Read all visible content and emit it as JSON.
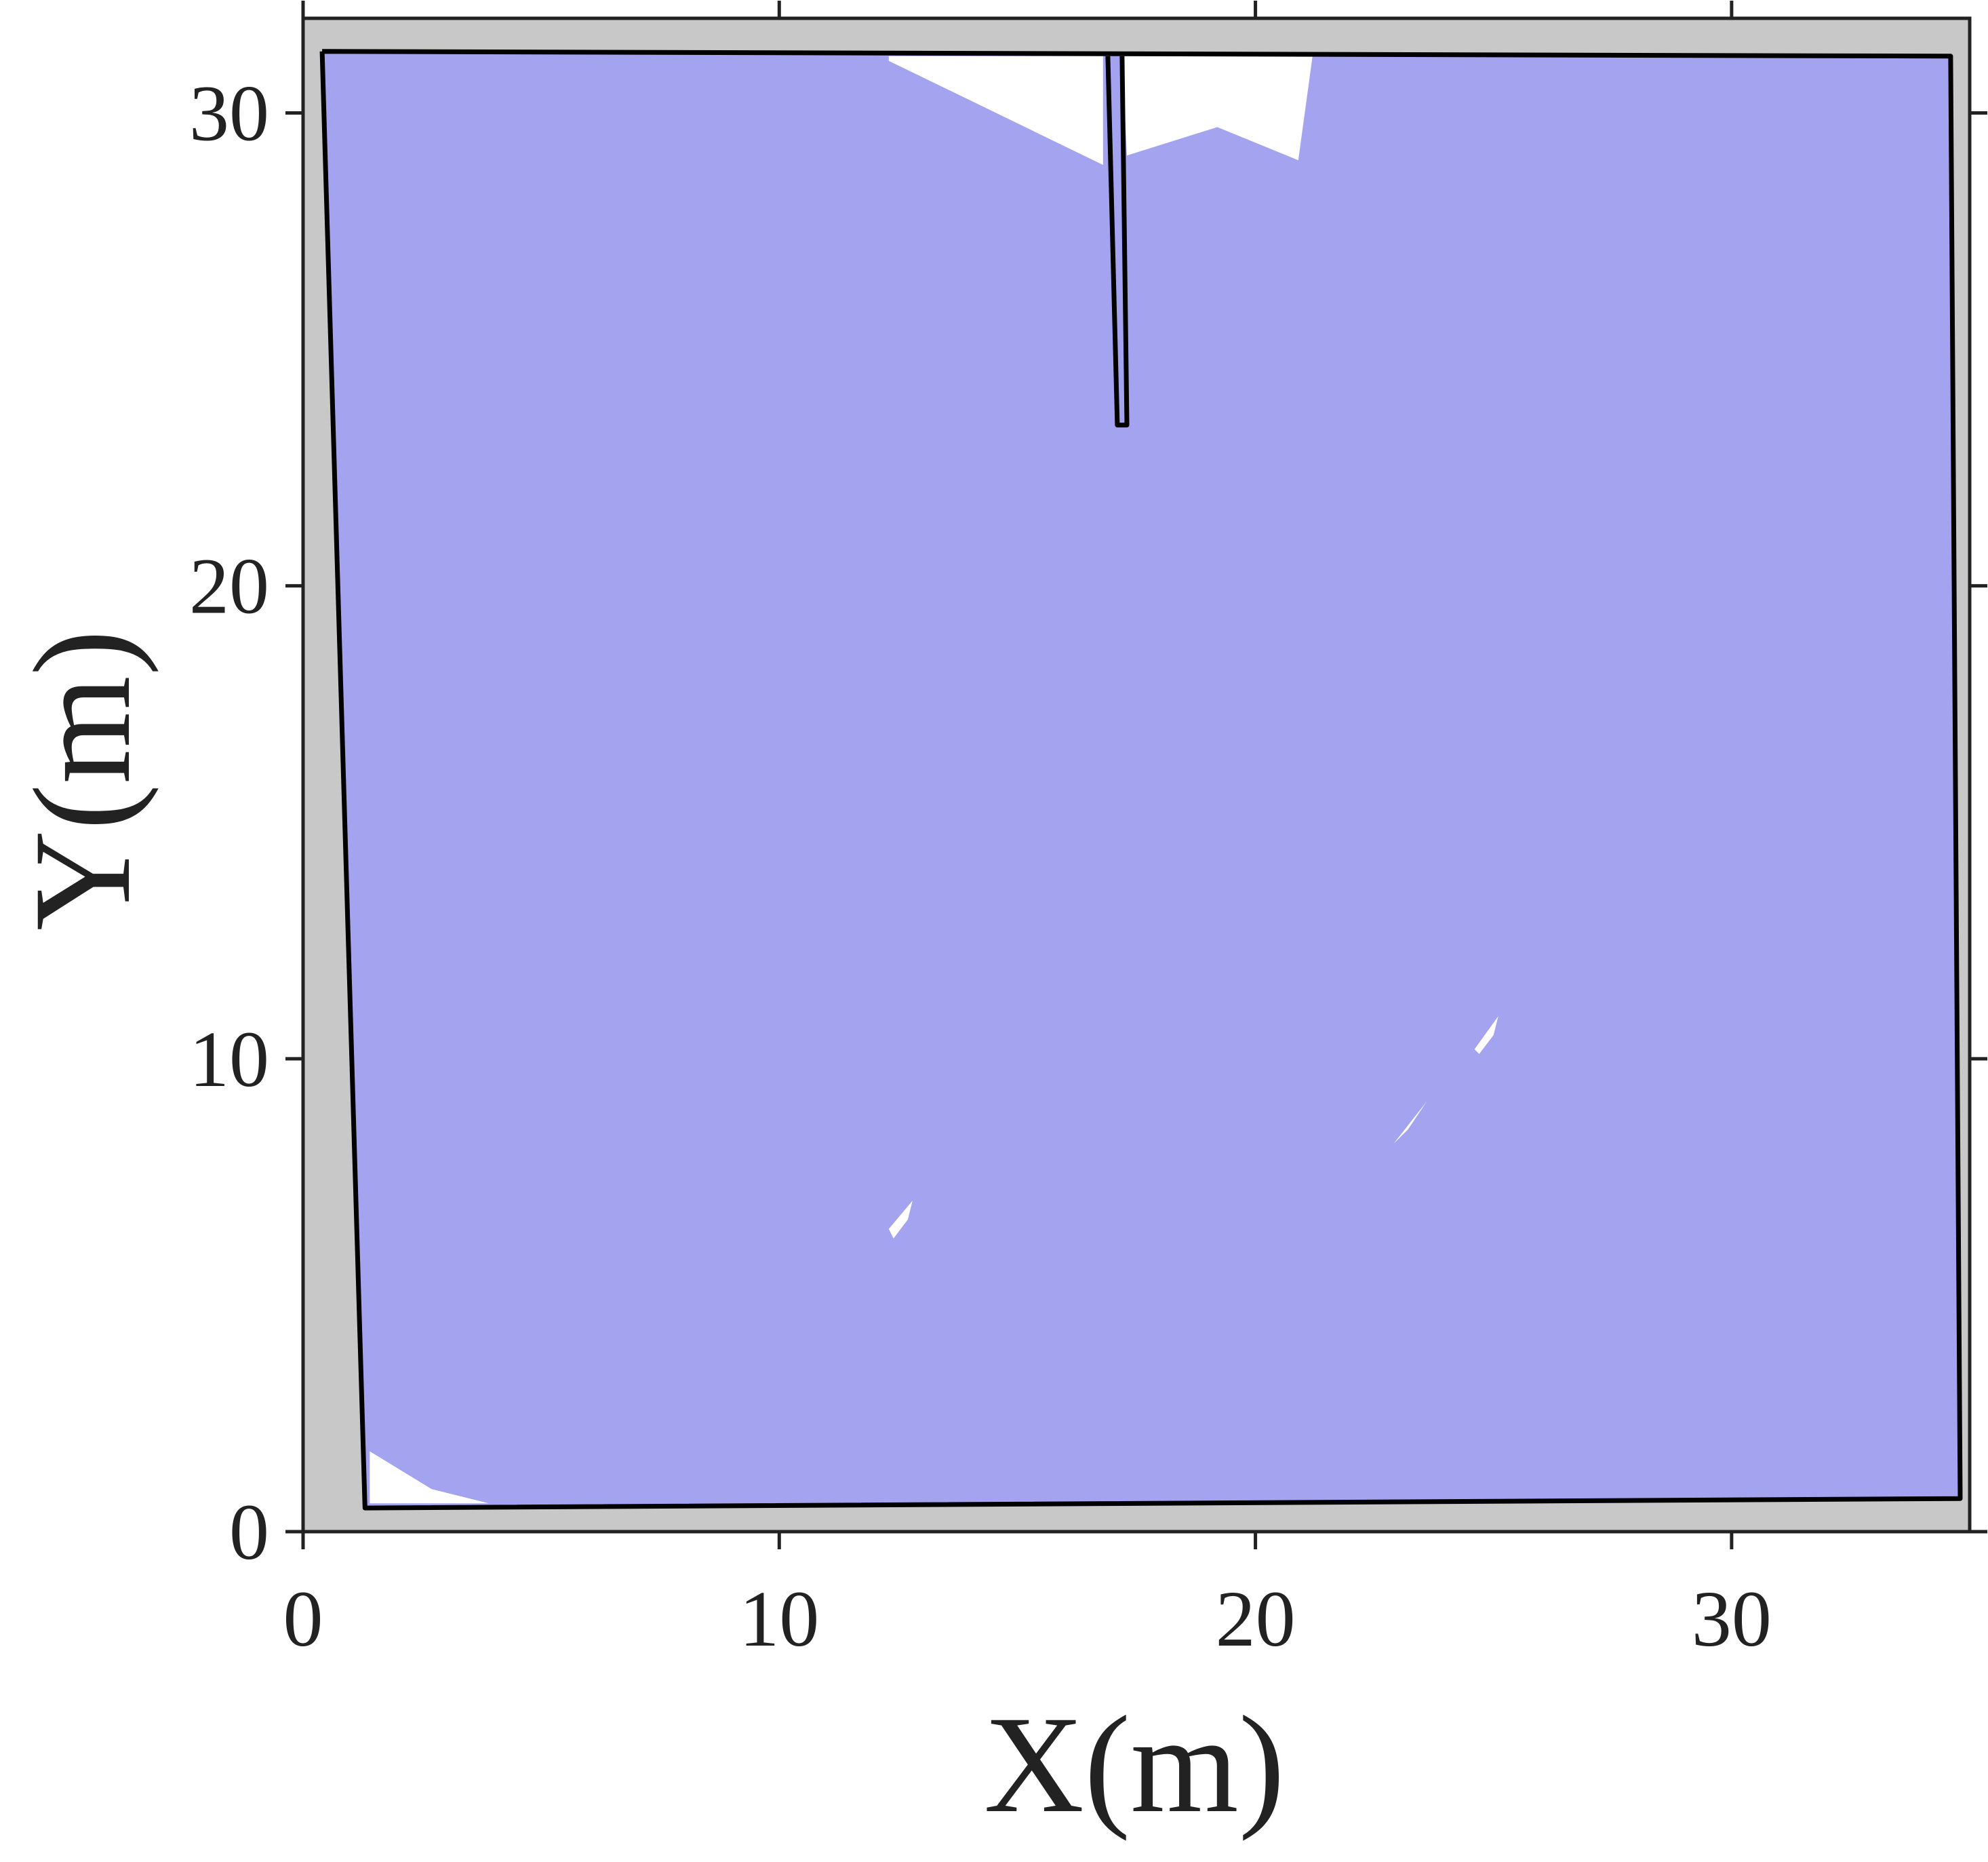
{
  "chart_data": {
    "type": "map",
    "xlabel": "X(m)",
    "ylabel": "Y(m)",
    "xlim": [
      0,
      35
    ],
    "ylim": [
      0,
      32
    ],
    "xticks": [
      0,
      10,
      20,
      30
    ],
    "yticks": [
      0,
      10,
      20,
      30
    ],
    "xtick_labels": [
      "0",
      "10",
      "20",
      "30"
    ],
    "ytick_labels": [
      "0",
      "10",
      "20",
      "30"
    ],
    "grid": false,
    "colors": {
      "unknown_background": "#c8c8c8",
      "explored_area": "#a3a3ef",
      "obstacle_wall": "#000000",
      "uncovered_area": "#ffffff"
    },
    "explored_region": [
      [
        0.4,
        31.3
      ],
      [
        34.6,
        31.2
      ],
      [
        34.8,
        0.7
      ],
      [
        1.3,
        0.5
      ]
    ],
    "walls": [
      [
        [
          0.4,
          31.3
        ],
        [
          34.6,
          31.2
        ],
        [
          34.8,
          0.7
        ],
        [
          1.3,
          0.5
        ],
        [
          0.4,
          31.3
        ]
      ],
      [
        [
          16.9,
          31.2
        ],
        [
          17.1,
          23.4
        ],
        [
          17.3,
          23.4
        ],
        [
          17.2,
          31.2
        ]
      ]
    ],
    "uncovered_regions": [
      [
        [
          12.3,
          31.2
        ],
        [
          16.8,
          31.2
        ],
        [
          16.8,
          28.9
        ],
        [
          12.3,
          31.1
        ]
      ],
      [
        [
          17.2,
          31.2
        ],
        [
          21.2,
          31.2
        ],
        [
          20.9,
          29.0
        ],
        [
          19.2,
          29.7
        ],
        [
          17.3,
          29.1
        ]
      ],
      [
        [
          1.4,
          1.7
        ],
        [
          1.4,
          0.6
        ],
        [
          3.9,
          0.6
        ],
        [
          2.7,
          0.9
        ]
      ],
      [
        [
          12.3,
          6.4
        ],
        [
          12.8,
          7.0
        ],
        [
          12.7,
          6.6
        ],
        [
          12.4,
          6.2
        ]
      ],
      [
        [
          24.6,
          10.2
        ],
        [
          25.1,
          10.9
        ],
        [
          25.0,
          10.5
        ],
        [
          24.7,
          10.1
        ]
      ],
      [
        [
          22.9,
          8.2
        ],
        [
          23.6,
          9.1
        ],
        [
          23.2,
          8.5
        ]
      ]
    ]
  }
}
